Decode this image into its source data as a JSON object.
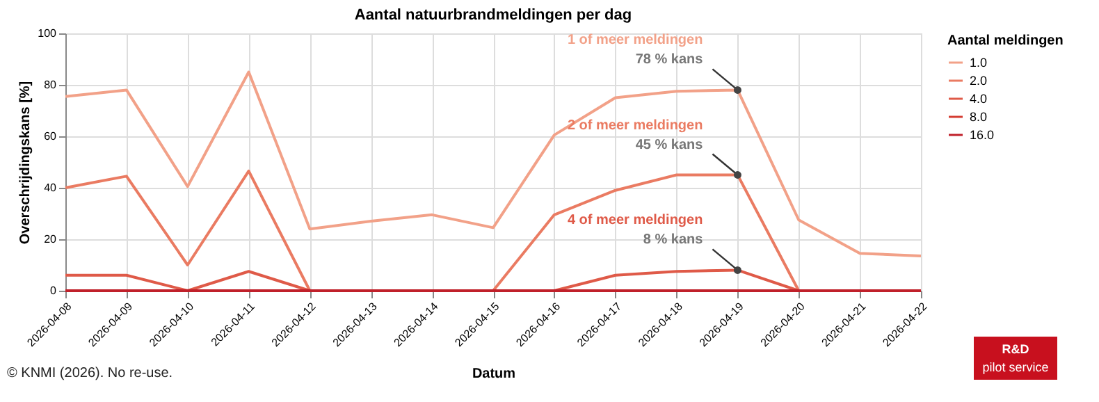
{
  "chart_data": {
    "type": "line",
    "title": "Aantal natuurbrandmeldingen per dag",
    "xlabel": "Datum",
    "ylabel": "Overschrijdingskans [%]",
    "legend_title": "Aantal meldingen",
    "categories": [
      "2026-04-08",
      "2026-04-09",
      "2026-04-10",
      "2026-04-11",
      "2026-04-12",
      "2026-04-13",
      "2026-04-14",
      "2026-04-15",
      "2026-04-16",
      "2026-04-17",
      "2026-04-18",
      "2026-04-19",
      "2026-04-20",
      "2026-04-21",
      "2026-04-22"
    ],
    "series": [
      {
        "name": "1.0",
        "color": "#f2a188",
        "values": [
          75.5,
          78,
          40.5,
          85,
          24,
          27,
          29.5,
          24.5,
          60.5,
          75,
          77.5,
          78,
          27.5,
          14.5,
          13.5
        ]
      },
      {
        "name": "2.0",
        "color": "#ea7b62",
        "values": [
          40,
          44.5,
          10,
          46.5,
          0,
          0,
          0,
          0,
          29.5,
          39,
          45,
          45,
          0,
          0,
          0
        ]
      },
      {
        "name": "4.0",
        "color": "#df5a48",
        "values": [
          6,
          6,
          0,
          7.5,
          0,
          0,
          0,
          0,
          0,
          6,
          7.5,
          8,
          0,
          0,
          0
        ]
      },
      {
        "name": "8.0",
        "color": "#d43d32",
        "values": [
          0,
          0,
          0,
          0,
          0,
          0,
          0,
          0,
          0,
          0,
          0,
          0,
          0,
          0,
          0
        ]
      },
      {
        "name": "16.0",
        "color": "#c0202a",
        "values": [
          0,
          0,
          0,
          0,
          0,
          0,
          0,
          0,
          0,
          0,
          0,
          0,
          0,
          0,
          0
        ]
      }
    ],
    "ylim": [
      0,
      100
    ],
    "yticks": [
      0,
      20,
      40,
      60,
      80,
      100
    ],
    "grid": true,
    "legend": "top right",
    "annotations": [
      "1 of meer meldingen",
      {
        "text": "78 % kans",
        "x": "2026-04-19",
        "y": 78
      },
      "2 of meer meldingen",
      {
        "text": "45 % kans",
        "x": "2026-04-19",
        "y": 45
      },
      "4 of meer meldingen",
      {
        "text": "8 % kans",
        "x": "2026-04-19",
        "y": 8
      },
      "© KNMI (2026). No re-use.",
      "R&D",
      "pilot service"
    ]
  }
}
